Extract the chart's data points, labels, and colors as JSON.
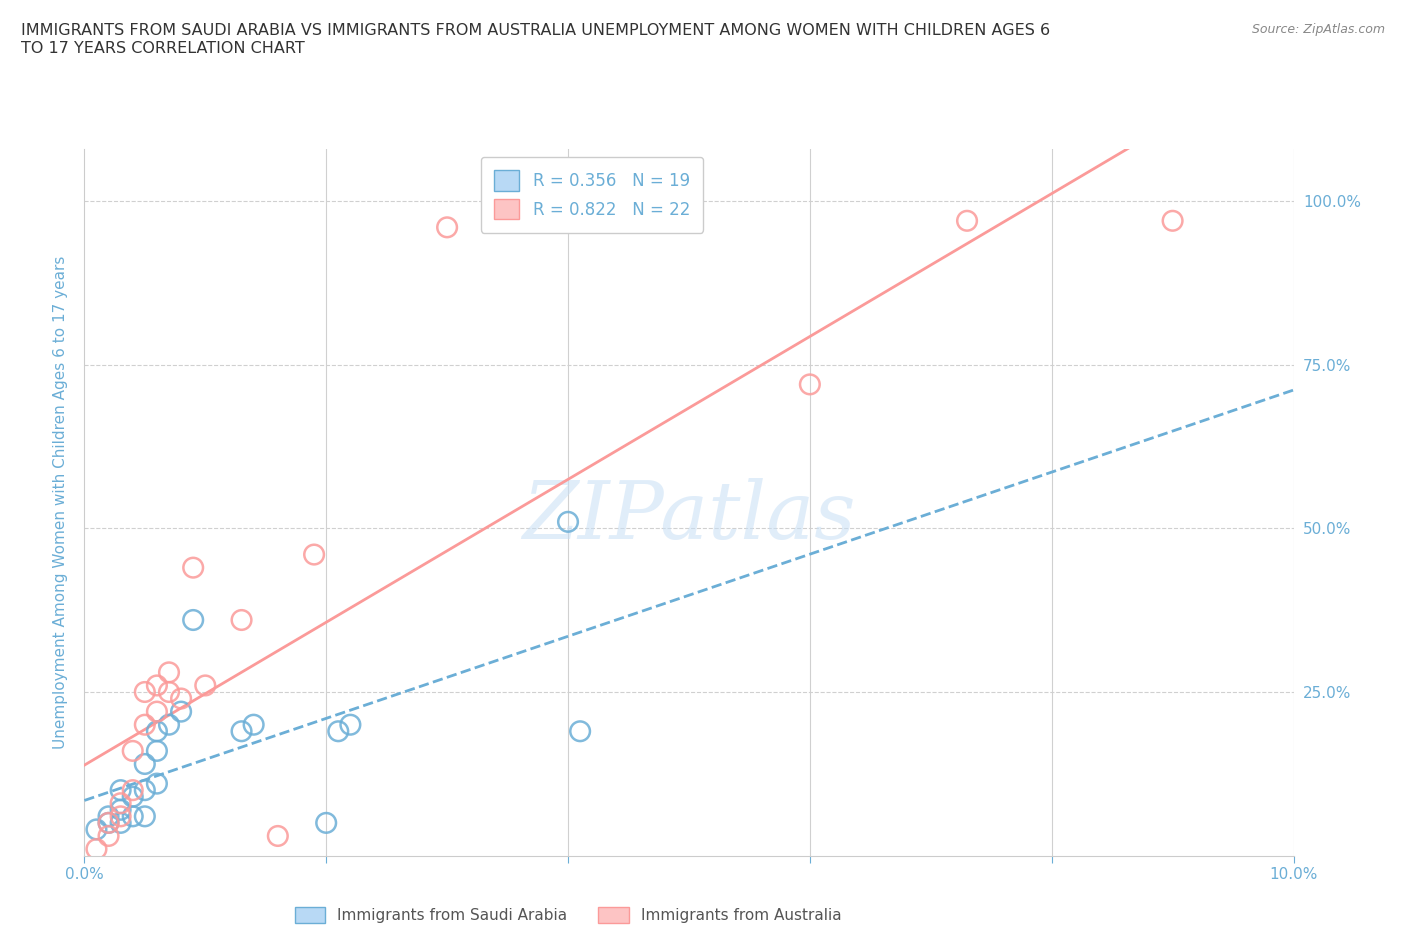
{
  "title": "IMMIGRANTS FROM SAUDI ARABIA VS IMMIGRANTS FROM AUSTRALIA UNEMPLOYMENT AMONG WOMEN WITH CHILDREN AGES 6\nTO 17 YEARS CORRELATION CHART",
  "source": "Source: ZipAtlas.com",
  "ylabel": "Unemployment Among Women with Children Ages 6 to 17 years",
  "xlim": [
    0.0,
    0.1
  ],
  "ylim": [
    0.0,
    1.08
  ],
  "xticks": [
    0.0,
    0.02,
    0.04,
    0.06,
    0.08,
    0.1
  ],
  "xticklabels": [
    "0.0%",
    "",
    "",
    "",
    "",
    "10.0%"
  ],
  "yticks": [
    0.0,
    0.25,
    0.5,
    0.75,
    1.0
  ],
  "yticklabels_right": [
    "",
    "25.0%",
    "50.0%",
    "75.0%",
    "100.0%"
  ],
  "color_saudi": "#6baed6",
  "color_australia": "#fb9a99",
  "watermark": "ZIPatlas",
  "saudi_x": [
    0.001,
    0.002,
    0.002,
    0.003,
    0.003,
    0.003,
    0.004,
    0.004,
    0.005,
    0.005,
    0.005,
    0.006,
    0.006,
    0.006,
    0.007,
    0.008,
    0.009,
    0.013,
    0.014,
    0.02,
    0.021,
    0.022,
    0.04,
    0.041
  ],
  "saudi_y": [
    0.04,
    0.05,
    0.06,
    0.05,
    0.07,
    0.1,
    0.06,
    0.09,
    0.06,
    0.1,
    0.14,
    0.11,
    0.16,
    0.19,
    0.2,
    0.22,
    0.36,
    0.19,
    0.2,
    0.05,
    0.19,
    0.2,
    0.51,
    0.19
  ],
  "australia_x": [
    0.001,
    0.002,
    0.002,
    0.003,
    0.003,
    0.004,
    0.004,
    0.005,
    0.005,
    0.006,
    0.006,
    0.007,
    0.007,
    0.008,
    0.009,
    0.01,
    0.013,
    0.016,
    0.019,
    0.03,
    0.06,
    0.073,
    0.09
  ],
  "australia_y": [
    0.01,
    0.03,
    0.05,
    0.06,
    0.08,
    0.1,
    0.16,
    0.2,
    0.25,
    0.22,
    0.26,
    0.25,
    0.28,
    0.24,
    0.44,
    0.26,
    0.36,
    0.03,
    0.46,
    0.96,
    0.72,
    0.97,
    0.97
  ],
  "bg_color": "#ffffff",
  "grid_color": "#d0d0d0",
  "tick_color": "#6baed6",
  "title_color": "#333333",
  "source_color": "#888888",
  "legend_bottom_color": "#555555"
}
